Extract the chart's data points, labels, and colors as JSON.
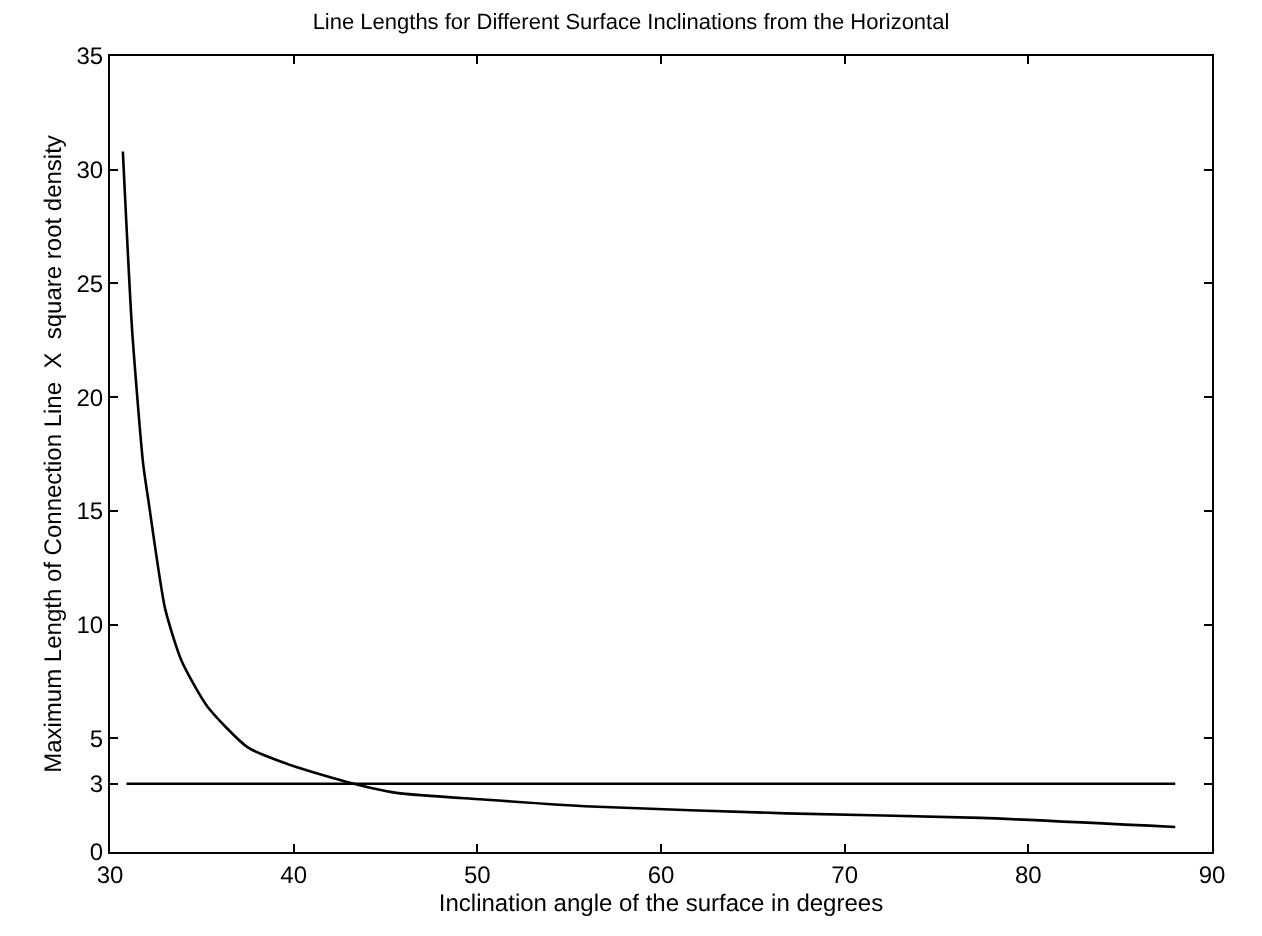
{
  "chart_data": {
    "type": "line",
    "title": "Line Lengths for Different Surface Inclinations from the Horizontal",
    "xlabel": "Inclination angle of the surface in degrees",
    "ylabel": "Maximum Length of Connection Line  X  square root density",
    "series": [
      {
        "color": "#000000",
        "x": [
          30.7,
          31.2,
          31.8,
          32.1,
          33.0,
          33.9,
          35.3,
          37.5,
          39.9,
          42.8,
          45.6,
          50.5,
          56.2,
          66.8,
          77.4,
          88.0
        ],
        "values": [
          30.8,
          23.0,
          17.1,
          15.4,
          10.7,
          8.4,
          6.4,
          4.6,
          3.8,
          3.1,
          2.6,
          2.3,
          2.0,
          1.7,
          1.5,
          1.1
        ]
      },
      {
        "color": "#000000",
        "x": [
          30.9,
          88.0
        ],
        "values": [
          3.0,
          3.0
        ]
      }
    ],
    "xlim": [
      30,
      90
    ],
    "xticks": [
      30,
      40,
      50,
      60,
      70,
      80,
      90
    ],
    "ylim": [
      0,
      35
    ],
    "yticks": [
      0,
      3,
      5,
      10,
      15,
      20,
      25,
      30,
      35
    ],
    "grid": false,
    "marker": "none",
    "line_style": "solid"
  }
}
